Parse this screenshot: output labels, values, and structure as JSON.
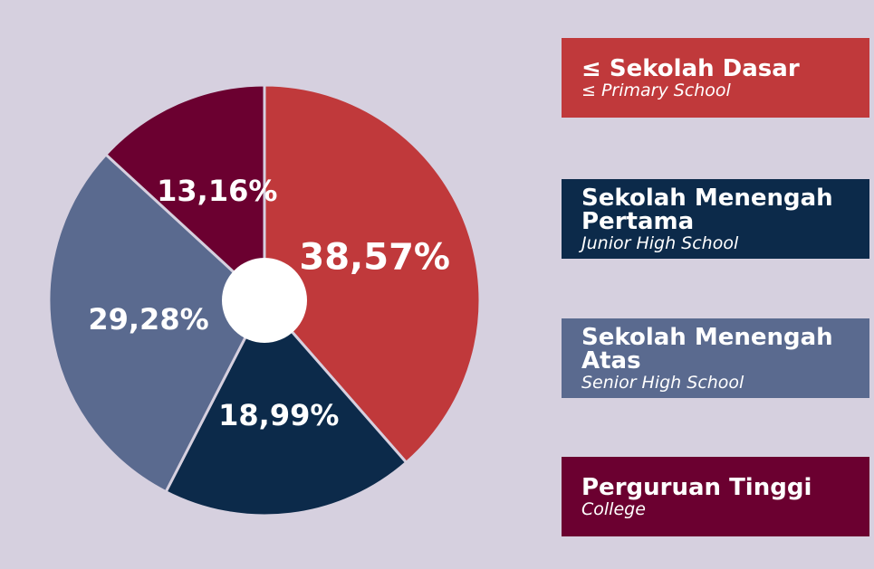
{
  "chart_data": {
    "type": "pie",
    "categories": [
      "≤ Sekolah Dasar",
      "Sekolah Menengah Pertama",
      "Sekolah Menengah Atas",
      "Perguruan Tinggi"
    ],
    "subtitles": [
      "≤ Primary School",
      "Junior High School",
      "Senior High School",
      "College"
    ],
    "values": [
      38.57,
      18.99,
      29.28,
      13.16
    ],
    "value_labels": [
      "38,57%",
      "18,99%",
      "29,28%",
      "13,16%"
    ],
    "colors": [
      "#c0393b",
      "#0c2a4a",
      "#5a6a8f",
      "#6b0030"
    ]
  }
}
